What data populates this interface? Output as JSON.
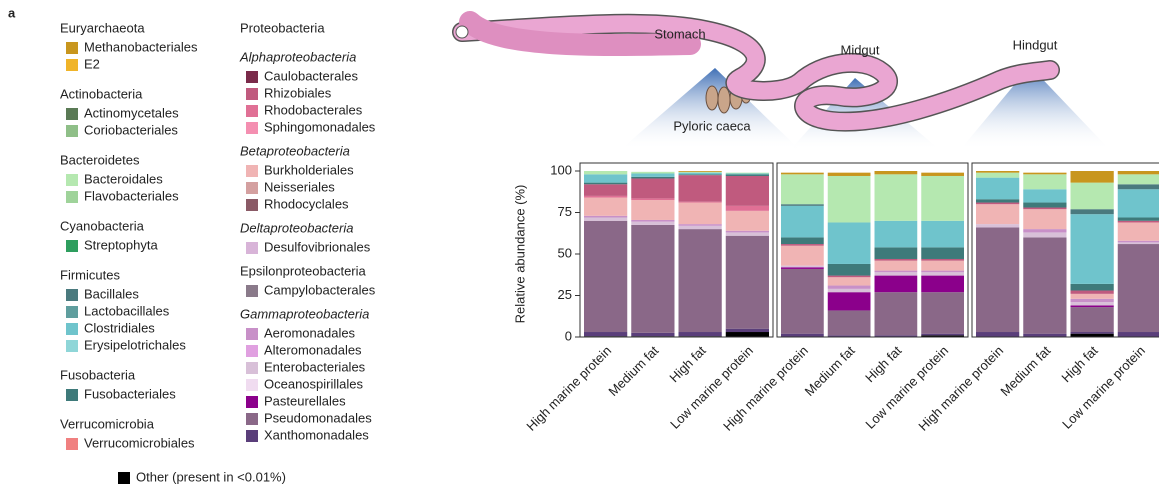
{
  "panel_label": "a",
  "diagram_label": "Stomach",
  "legend": {
    "groups": [
      {
        "title": "Euryarchaeota",
        "italic": false,
        "items": [
          {
            "name": "Methanobacteriales",
            "color": "#c8961e"
          },
          {
            "name": "E2",
            "color": "#f0b429"
          }
        ]
      },
      {
        "title": "Actinobacteria",
        "italic": false,
        "items": [
          {
            "name": "Actinomycetales",
            "color": "#5a7a55"
          },
          {
            "name": "Coriobacteriales",
            "color": "#8fbf88"
          }
        ]
      },
      {
        "title": "Bacteroidetes",
        "italic": false,
        "items": [
          {
            "name": "Bacteroidales",
            "color": "#b5e8b0"
          },
          {
            "name": "Flavobacteriales",
            "color": "#9fd39a"
          }
        ]
      },
      {
        "title": "Cyanobacteria",
        "italic": false,
        "items": [
          {
            "name": "Streptophyta",
            "color": "#2e9e5e"
          }
        ]
      },
      {
        "title": "Firmicutes",
        "italic": false,
        "items": [
          {
            "name": "Bacillales",
            "color": "#4a7a7e"
          },
          {
            "name": "Lactobacillales",
            "color": "#5f9e9e"
          },
          {
            "name": "Clostridiales",
            "color": "#6fc4cc"
          },
          {
            "name": "Erysipelotrichales",
            "color": "#8fd6d8"
          }
        ]
      },
      {
        "title": "Fusobacteria",
        "italic": false,
        "items": [
          {
            "name": "Fusobacteriales",
            "color": "#3e7a7a"
          }
        ]
      },
      {
        "title": "Verrucomicrobia",
        "italic": false,
        "items": [
          {
            "name": "Verrucomicrobiales",
            "color": "#f08080"
          }
        ]
      },
      {
        "title": "Proteobacteria",
        "italic": false,
        "items": []
      },
      {
        "title": "Alphaproteobacteria",
        "italic": true,
        "items": [
          {
            "name": "Caulobacterales",
            "color": "#7a2a4a"
          },
          {
            "name": "Rhizobiales",
            "color": "#c05a7e"
          },
          {
            "name": "Rhodobacterales",
            "color": "#e07095"
          },
          {
            "name": "Sphingomonadales",
            "color": "#f48fb1"
          }
        ]
      },
      {
        "title": "Betaproteobacteria",
        "italic": true,
        "items": [
          {
            "name": "Burkholderiales",
            "color": "#f0b4b4"
          },
          {
            "name": "Neisseriales",
            "color": "#d4a0a0"
          },
          {
            "name": "Rhodocyclales",
            "color": "#8a5a66"
          }
        ]
      },
      {
        "title": "Deltaproteobacteria",
        "italic": true,
        "items": [
          {
            "name": "Desulfovibrionales",
            "color": "#d8b4d8"
          }
        ]
      },
      {
        "title": "Epsilonproteobacteria",
        "italic": false,
        "items": [
          {
            "name": "Campylobacterales",
            "color": "#8a7a8a"
          }
        ]
      },
      {
        "title": "Gammaproteobacteria",
        "italic": true,
        "items": [
          {
            "name": "Aeromonadales",
            "color": "#c890c8"
          },
          {
            "name": "Alteromonadales",
            "color": "#e0a0e0"
          },
          {
            "name": "Enterobacteriales",
            "color": "#d8c0d8"
          },
          {
            "name": "Oceanospirillales",
            "color": "#f0dcf0"
          },
          {
            "name": "Pasteurellales",
            "color": "#8b008b"
          },
          {
            "name": "Pseudomonadales",
            "color": "#8a6888"
          },
          {
            "name": "Xanthomonadales",
            "color": "#5a3e7a"
          }
        ]
      }
    ],
    "other": {
      "name": "Other (present in <0.01%)",
      "color": "#000000"
    }
  },
  "chart_data": [
    {
      "type": "stacked_bar",
      "title": "Pyloric caeca",
      "ylabel": "Relative abundance (%)",
      "categories": [
        "High marine protein",
        "Medium fat",
        "High fat",
        "Low marine protein"
      ],
      "ylim": [
        0,
        100
      ],
      "yticks": [
        0,
        25,
        50,
        75,
        100
      ],
      "series": [
        {
          "name": "Other (present in <0.01%)",
          "color": "#000000",
          "values": [
            0.5,
            0.5,
            0.5,
            3
          ]
        },
        {
          "name": "Xanthomonadales",
          "color": "#5a3e7a",
          "values": [
            2.5,
            2,
            2.5,
            2
          ]
        },
        {
          "name": "Pseudomonadales",
          "color": "#8a6888",
          "values": [
            67,
            65,
            62,
            56
          ]
        },
        {
          "name": "Pasteurellales",
          "color": "#8b008b",
          "values": [
            0,
            0,
            0,
            0
          ]
        },
        {
          "name": "Enterobacteriales",
          "color": "#d8c0d8",
          "values": [
            2,
            2,
            2,
            2
          ]
        },
        {
          "name": "Aeromonadales",
          "color": "#c890c8",
          "values": [
            1,
            1,
            1,
            1
          ]
        },
        {
          "name": "Burkholderiales",
          "color": "#f0b4b4",
          "values": [
            11,
            12,
            13,
            12
          ]
        },
        {
          "name": "Rhodobacterales",
          "color": "#e07095",
          "values": [
            1,
            1,
            0.5,
            3
          ]
        },
        {
          "name": "Rhizobiales",
          "color": "#c05a7e",
          "values": [
            7,
            12,
            16,
            18
          ]
        },
        {
          "name": "Fusobacteriales",
          "color": "#3e7a7a",
          "values": [
            1,
            1,
            0.5,
            1
          ]
        },
        {
          "name": "Clostridiales",
          "color": "#6fc4cc",
          "values": [
            5,
            2,
            1,
            0.5
          ]
        },
        {
          "name": "Bacillales",
          "color": "#4a7a7e",
          "values": [
            0,
            0,
            0,
            0
          ]
        },
        {
          "name": "Bacteroidales",
          "color": "#b5e8b0",
          "values": [
            2,
            1,
            0.5,
            0.5
          ]
        },
        {
          "name": "Methanobacteriales",
          "color": "#c8961e",
          "values": [
            0,
            0,
            0.5,
            0
          ]
        }
      ]
    },
    {
      "type": "stacked_bar",
      "title": "Midgut",
      "categories": [
        "High marine protein",
        "Medium fat",
        "High fat",
        "Low marine protein"
      ],
      "ylim": [
        0,
        100
      ],
      "series": [
        {
          "name": "Other (present in <0.01%)",
          "color": "#000000",
          "values": [
            0,
            0,
            0,
            1
          ]
        },
        {
          "name": "Xanthomonadales",
          "color": "#5a3e7a",
          "values": [
            2,
            1,
            1,
            1
          ]
        },
        {
          "name": "Pseudomonadales",
          "color": "#8a6888",
          "values": [
            39,
            15,
            26,
            25
          ]
        },
        {
          "name": "Pasteurellales",
          "color": "#8b008b",
          "values": [
            1,
            11,
            10,
            10
          ]
        },
        {
          "name": "Enterobacteriales",
          "color": "#d8c0d8",
          "values": [
            1,
            2,
            2,
            2
          ]
        },
        {
          "name": "Aeromonadales",
          "color": "#c890c8",
          "values": [
            0,
            2,
            1,
            1
          ]
        },
        {
          "name": "Burkholderiales",
          "color": "#f0b4b4",
          "values": [
            12,
            5,
            6,
            6
          ]
        },
        {
          "name": "Rhodobacterales",
          "color": "#e07095",
          "values": [
            0,
            0,
            0,
            0
          ]
        },
        {
          "name": "Rhizobiales",
          "color": "#c05a7e",
          "values": [
            1,
            1,
            1,
            1
          ]
        },
        {
          "name": "Fusobacteriales",
          "color": "#3e7a7a",
          "values": [
            4,
            7,
            7,
            7
          ]
        },
        {
          "name": "Clostridiales",
          "color": "#6fc4cc",
          "values": [
            19,
            25,
            16,
            16
          ]
        },
        {
          "name": "Bacillales",
          "color": "#4a7a7e",
          "values": [
            1,
            0,
            0,
            0
          ]
        },
        {
          "name": "Bacteroidales",
          "color": "#b5e8b0",
          "values": [
            18,
            28,
            28,
            27
          ]
        },
        {
          "name": "Methanobacteriales",
          "color": "#c8961e",
          "values": [
            1,
            2,
            2,
            2
          ]
        }
      ]
    },
    {
      "type": "stacked_bar",
      "title": "Hindgut",
      "categories": [
        "High marine protein",
        "Medium fat",
        "High fat",
        "Low marine protein"
      ],
      "ylim": [
        0,
        100
      ],
      "series": [
        {
          "name": "Other (present in <0.01%)",
          "color": "#000000",
          "values": [
            0,
            0,
            2,
            0
          ]
        },
        {
          "name": "Xanthomonadales",
          "color": "#5a3e7a",
          "values": [
            3,
            2,
            1,
            3
          ]
        },
        {
          "name": "Pseudomonadales",
          "color": "#8a6888",
          "values": [
            63,
            58,
            15,
            53
          ]
        },
        {
          "name": "Pasteurellales",
          "color": "#8b008b",
          "values": [
            0,
            0,
            1,
            0
          ]
        },
        {
          "name": "Enterobacteriales",
          "color": "#d8c0d8",
          "values": [
            2,
            3,
            2,
            1
          ]
        },
        {
          "name": "Aeromonadales",
          "color": "#c890c8",
          "values": [
            0,
            2,
            2,
            1
          ]
        },
        {
          "name": "Burkholderiales",
          "color": "#f0b4b4",
          "values": [
            12,
            12,
            3,
            11
          ]
        },
        {
          "name": "Rhodobacterales",
          "color": "#e07095",
          "values": [
            0,
            0,
            0,
            0
          ]
        },
        {
          "name": "Rhizobiales",
          "color": "#c05a7e",
          "values": [
            1,
            1,
            2,
            1
          ]
        },
        {
          "name": "Fusobacteriales",
          "color": "#3e7a7a",
          "values": [
            2,
            3,
            4,
            2
          ]
        },
        {
          "name": "Clostridiales",
          "color": "#6fc4cc",
          "values": [
            13,
            8,
            42,
            17
          ]
        },
        {
          "name": "Bacillales",
          "color": "#4a7a7e",
          "values": [
            0,
            0,
            3,
            3
          ]
        },
        {
          "name": "Bacteroidales",
          "color": "#b5e8b0",
          "values": [
            3,
            9,
            16,
            6
          ]
        },
        {
          "name": "Methanobacteriales",
          "color": "#c8961e",
          "values": [
            1,
            1,
            7,
            2
          ]
        }
      ]
    }
  ]
}
